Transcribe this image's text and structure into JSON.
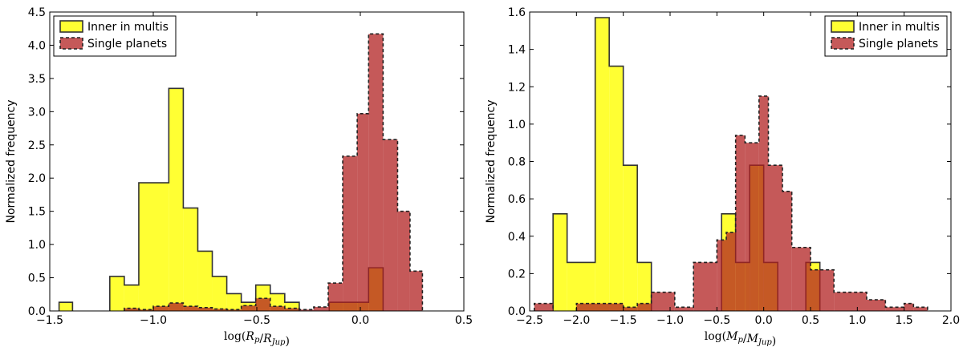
{
  "chart_data": [
    {
      "type": "histogram",
      "ylabel": "Normalized frequency",
      "xlabel_math": {
        "pre": "log(",
        "base1": "R",
        "sub1": "p",
        "mid": "/",
        "base2": "R",
        "sub2": "Jup",
        "post": ")"
      },
      "xlim": [
        -1.5,
        0.5
      ],
      "ylim": [
        0,
        4.5
      ],
      "xticks": [
        -1.5,
        -1.0,
        -0.5,
        0.0,
        0.5
      ],
      "xtick_labels": [
        "−1.5",
        "−1.0",
        "−0.5",
        "0.0",
        "0.5"
      ],
      "yticks": [
        0,
        0.5,
        1.0,
        1.5,
        2.0,
        2.5,
        3.0,
        3.5,
        4.0,
        4.5
      ],
      "ytick_labels": [
        "0.0",
        "0.5",
        "1.0",
        "1.5",
        "2.0",
        "2.5",
        "3.0",
        "3.5",
        "4.0",
        "4.5"
      ],
      "legend": {
        "placement": "upper-left",
        "entries": [
          "Inner in multis",
          "Single planets"
        ]
      },
      "series": [
        {
          "name": "Inner in multis",
          "color": "#ffff33",
          "edge": "#333333",
          "linestyle": "solid",
          "bins": [
            [
              -1.455,
              -1.39,
              0.13
            ],
            [
              -1.21,
              -1.14,
              0.52
            ],
            [
              -1.14,
              -1.07,
              0.39
            ],
            [
              -1.07,
              -0.925,
              1.93
            ],
            [
              -0.925,
              -0.855,
              3.35
            ],
            [
              -0.855,
              -0.785,
              1.55
            ],
            [
              -0.785,
              -0.715,
              0.9
            ],
            [
              -0.715,
              -0.645,
              0.52
            ],
            [
              -0.645,
              -0.575,
              0.26
            ],
            [
              -0.575,
              -0.505,
              0.13
            ],
            [
              -0.505,
              -0.435,
              0.39
            ],
            [
              -0.435,
              -0.365,
              0.26
            ],
            [
              -0.365,
              -0.295,
              0.13
            ],
            [
              -0.15,
              0.04,
              0.13
            ],
            [
              0.04,
              0.11,
              0.65
            ]
          ]
        },
        {
          "name": "Single planets",
          "color": "#b22222",
          "alpha": 0.75,
          "edge": "#222222",
          "linestyle": "dashed",
          "bins": [
            [
              -1.14,
              -1.07,
              0.04
            ],
            [
              -1.07,
              -1.0,
              0.02
            ],
            [
              -1.0,
              -0.925,
              0.07
            ],
            [
              -0.925,
              -0.855,
              0.12
            ],
            [
              -0.855,
              -0.785,
              0.07
            ],
            [
              -0.785,
              -0.715,
              0.05
            ],
            [
              -0.715,
              -0.645,
              0.03
            ],
            [
              -0.645,
              -0.575,
              0.02
            ],
            [
              -0.575,
              -0.505,
              0.08
            ],
            [
              -0.505,
              -0.435,
              0.19
            ],
            [
              -0.435,
              -0.365,
              0.07
            ],
            [
              -0.365,
              -0.295,
              0.04
            ],
            [
              -0.295,
              -0.225,
              0.02
            ],
            [
              -0.225,
              -0.155,
              0.06
            ],
            [
              -0.155,
              -0.085,
              0.42
            ],
            [
              -0.085,
              -0.015,
              2.33
            ],
            [
              -0.015,
              0.04,
              2.97
            ],
            [
              0.04,
              0.11,
              4.17
            ],
            [
              0.11,
              0.18,
              2.58
            ],
            [
              0.18,
              0.24,
              1.5
            ],
            [
              0.24,
              0.3,
              0.6
            ]
          ]
        }
      ]
    },
    {
      "type": "histogram",
      "ylabel": "Normalized frequency",
      "xlabel_math": {
        "pre": "log(",
        "base1": "M",
        "sub1": "p",
        "mid": "/",
        "base2": "M",
        "sub2": "Jup",
        "post": ")"
      },
      "xlim": [
        -2.5,
        2.0
      ],
      "ylim": [
        0,
        1.6
      ],
      "xticks": [
        -2.5,
        -2.0,
        -1.5,
        -1.0,
        -0.5,
        0.0,
        0.5,
        1.0,
        1.5,
        2.0
      ],
      "xtick_labels": [
        "−2.5",
        "−2.0",
        "−1.5",
        "−1.0",
        "−0.5",
        "0.0",
        "0.5",
        "1.0",
        "1.5",
        "2.0"
      ],
      "yticks": [
        0,
        0.2,
        0.4,
        0.6,
        0.8,
        1.0,
        1.2,
        1.4,
        1.6
      ],
      "ytick_labels": [
        "0.0",
        "0.2",
        "0.4",
        "0.6",
        "0.8",
        "1.0",
        "1.2",
        "1.4",
        "1.6"
      ],
      "legend": {
        "placement": "upper-right",
        "entries": [
          "Inner in multis",
          "Single planets"
        ]
      },
      "series": [
        {
          "name": "Inner in multis",
          "color": "#ffff33",
          "edge": "#333333",
          "linestyle": "solid",
          "bins": [
            [
              -2.25,
              -2.1,
              0.52
            ],
            [
              -2.1,
              -1.8,
              0.26
            ],
            [
              -1.8,
              -1.65,
              1.57
            ],
            [
              -1.65,
              -1.5,
              1.31
            ],
            [
              -1.5,
              -1.35,
              0.78
            ],
            [
              -1.35,
              -1.2,
              0.26
            ],
            [
              -0.45,
              -0.3,
              0.52
            ],
            [
              -0.3,
              -0.15,
              0.26
            ],
            [
              -0.15,
              0.0,
              0.78
            ],
            [
              0.0,
              0.15,
              0.26
            ],
            [
              0.45,
              0.6,
              0.26
            ]
          ]
        },
        {
          "name": "Single planets",
          "color": "#b22222",
          "alpha": 0.75,
          "edge": "#222222",
          "linestyle": "dashed",
          "bins": [
            [
              -2.45,
              -2.25,
              0.04
            ],
            [
              -2.0,
              -1.5,
              0.04
            ],
            [
              -1.5,
              -1.35,
              0.02
            ],
            [
              -1.35,
              -1.2,
              0.04
            ],
            [
              -1.2,
              -0.95,
              0.1
            ],
            [
              -0.95,
              -0.75,
              0.02
            ],
            [
              -0.75,
              -0.5,
              0.26
            ],
            [
              -0.5,
              -0.4,
              0.38
            ],
            [
              -0.4,
              -0.3,
              0.42
            ],
            [
              -0.3,
              -0.2,
              0.94
            ],
            [
              -0.2,
              -0.05,
              0.9
            ],
            [
              -0.05,
              0.05,
              1.15
            ],
            [
              0.05,
              0.2,
              0.78
            ],
            [
              0.2,
              0.3,
              0.64
            ],
            [
              0.3,
              0.5,
              0.34
            ],
            [
              0.5,
              0.75,
              0.22
            ],
            [
              0.75,
              1.1,
              0.1
            ],
            [
              1.1,
              1.3,
              0.06
            ],
            [
              1.3,
              1.5,
              0.02
            ],
            [
              1.5,
              1.6,
              0.04
            ],
            [
              1.6,
              1.75,
              0.02
            ]
          ]
        }
      ]
    }
  ]
}
